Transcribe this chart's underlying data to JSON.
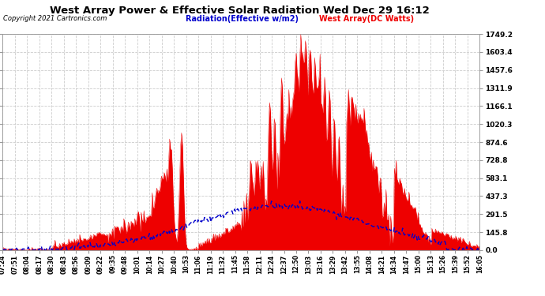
{
  "title": "West Array Power & Effective Solar Radiation Wed Dec 29 16:12",
  "copyright": "Copyright 2021 Cartronics.com",
  "legend_radiation": "Radiation(Effective w/m2)",
  "legend_west": "West Array(DC Watts)",
  "ymax": 1749.2,
  "ymin": 0.0,
  "ytick_values": [
    0.0,
    145.8,
    291.5,
    437.3,
    583.1,
    728.8,
    874.6,
    1020.3,
    1166.1,
    1311.9,
    1457.6,
    1603.4,
    1749.2
  ],
  "background_color": "#ffffff",
  "grid_color": "#cccccc",
  "red_color": "#ee0000",
  "blue_color": "#0000cc",
  "title_color": "#000000",
  "copyright_color": "#000000",
  "xtick_labels": [
    "07:24",
    "07:51",
    "08:04",
    "08:17",
    "08:30",
    "08:43",
    "08:56",
    "09:09",
    "09:22",
    "09:35",
    "09:48",
    "10:01",
    "10:14",
    "10:27",
    "10:40",
    "10:53",
    "11:06",
    "11:19",
    "11:32",
    "11:45",
    "11:58",
    "12:11",
    "12:24",
    "12:37",
    "12:50",
    "13:03",
    "13:16",
    "13:29",
    "13:42",
    "13:55",
    "14:08",
    "14:21",
    "14:34",
    "14:47",
    "15:00",
    "15:13",
    "15:26",
    "15:39",
    "15:52",
    "16:05"
  ]
}
